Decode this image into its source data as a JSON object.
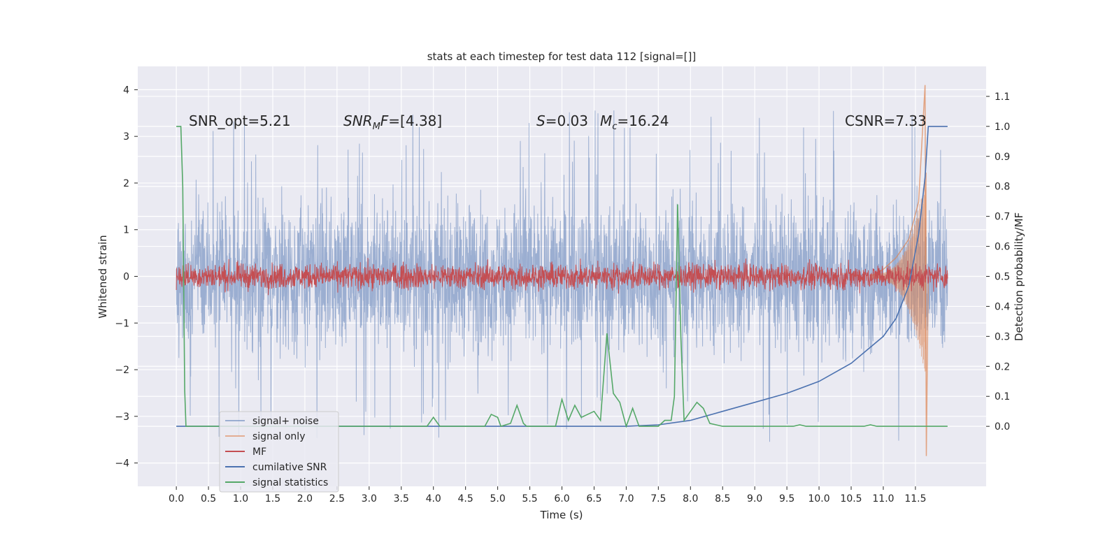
{
  "chart_data": {
    "type": "line",
    "title": "stats at each timestep for test data 112 [signal=[]]",
    "xlabel": "Time (s)",
    "ylabel": "Whitened strain",
    "ylabel_right": "Detection probability/MF",
    "xlim": [
      -0.6,
      12.6
    ],
    "ylim": [
      -4.5,
      4.5
    ],
    "ylim_right": [
      -0.2,
      1.2
    ],
    "x_ticks": [
      "0.0",
      "0.5",
      "1.0",
      "1.5",
      "2.0",
      "2.5",
      "3.0",
      "3.5",
      "4.0",
      "4.5",
      "5.0",
      "5.5",
      "6.0",
      "6.5",
      "7.0",
      "7.5",
      "8.0",
      "8.5",
      "9.0",
      "9.5",
      "10.0",
      "10.5",
      "11.0",
      "11.5"
    ],
    "y_ticks": [
      "4",
      "3",
      "2",
      "1",
      "0",
      "−1",
      "−2",
      "−3",
      "−4"
    ],
    "y_ticks_right": [
      "1.1",
      "1.0",
      "0.9",
      "0.8",
      "0.7",
      "0.6",
      "0.5",
      "0.4",
      "0.3",
      "0.2",
      "0.1",
      "0.0"
    ],
    "grid": true,
    "legend_placement": "lower-left",
    "legend": [
      "signal+ noise",
      "signal only",
      "MF",
      "cumilative SNR",
      "signal statistics"
    ],
    "annotations": {
      "snr_opt": "SNR_opt=5.21",
      "snr_mf_sym": "SNR",
      "snr_mf_sub": "M",
      "snr_mf_sym2": "F",
      "snr_mf_val": "=[4.38]",
      "s_sym": "S",
      "s_val": "=0.03",
      "mc_sym": "M",
      "mc_sub": "c",
      "mc_val": "=16.24",
      "csnr": "CSNR=7.33"
    },
    "series": [
      {
        "name": "signal+ noise",
        "color": "#4c72b0",
        "axis": "left",
        "description": "whitened noisy strain, roughly within ±2.5 with spikes to about ±3.7",
        "x_range": [
          0.0,
          12.0
        ],
        "typical_amplitude": 1.3,
        "peak_max": 3.8,
        "peak_min": -3.85
      },
      {
        "name": "signal only",
        "color": "#dd8452",
        "axis": "left",
        "description": "chirp signal growing near the end",
        "points": [
          [
            10.8,
            0.0
          ],
          [
            11.0,
            0.15
          ],
          [
            11.2,
            0.4
          ],
          [
            11.4,
            0.8
          ],
          [
            11.55,
            1.6
          ],
          [
            11.65,
            4.1
          ],
          [
            11.67,
            -3.85
          ],
          [
            11.7,
            0.0
          ]
        ]
      },
      {
        "name": "MF",
        "color": "#c44e52",
        "axis": "left",
        "description": "matched filter output, roughly within ±0.4",
        "x_range": [
          0.0,
          12.0
        ],
        "typical_amplitude": 0.3
      },
      {
        "name": "cumilative SNR",
        "color": "#4c72b0",
        "axis": "right",
        "points": [
          [
            0.0,
            0.0
          ],
          [
            7.0,
            0.0
          ],
          [
            7.5,
            0.005
          ],
          [
            8.0,
            0.02
          ],
          [
            8.5,
            0.05
          ],
          [
            9.0,
            0.08
          ],
          [
            9.5,
            0.11
          ],
          [
            10.0,
            0.15
          ],
          [
            10.5,
            0.21
          ],
          [
            11.0,
            0.3
          ],
          [
            11.2,
            0.36
          ],
          [
            11.4,
            0.47
          ],
          [
            11.55,
            0.64
          ],
          [
            11.65,
            0.83
          ],
          [
            11.7,
            1.0
          ],
          [
            12.0,
            1.0
          ]
        ]
      },
      {
        "name": "signal statistics",
        "color": "#55a868",
        "axis": "right",
        "points": [
          [
            0.0,
            1.0
          ],
          [
            0.07,
            1.0
          ],
          [
            0.1,
            0.8
          ],
          [
            0.13,
            0.12
          ],
          [
            0.15,
            0.0
          ],
          [
            3.9,
            0.0
          ],
          [
            4.0,
            0.03
          ],
          [
            4.1,
            0.0
          ],
          [
            4.8,
            0.0
          ],
          [
            4.9,
            0.04
          ],
          [
            5.0,
            0.03
          ],
          [
            5.05,
            0.0
          ],
          [
            5.2,
            0.01
          ],
          [
            5.3,
            0.07
          ],
          [
            5.4,
            0.01
          ],
          [
            5.45,
            0.0
          ],
          [
            5.9,
            0.0
          ],
          [
            6.0,
            0.09
          ],
          [
            6.1,
            0.02
          ],
          [
            6.2,
            0.07
          ],
          [
            6.3,
            0.03
          ],
          [
            6.5,
            0.05
          ],
          [
            6.6,
            0.02
          ],
          [
            6.7,
            0.31
          ],
          [
            6.8,
            0.11
          ],
          [
            6.9,
            0.08
          ],
          [
            7.0,
            0.0
          ],
          [
            7.1,
            0.06
          ],
          [
            7.2,
            0.0
          ],
          [
            7.5,
            0.0
          ],
          [
            7.6,
            0.02
          ],
          [
            7.7,
            0.02
          ],
          [
            7.75,
            0.1
          ],
          [
            7.8,
            0.74
          ],
          [
            7.85,
            0.3
          ],
          [
            7.9,
            0.02
          ],
          [
            8.0,
            0.05
          ],
          [
            8.1,
            0.08
          ],
          [
            8.2,
            0.06
          ],
          [
            8.3,
            0.01
          ],
          [
            8.5,
            0.0
          ],
          [
            9.6,
            0.0
          ],
          [
            9.7,
            0.005
          ],
          [
            9.8,
            0.0
          ],
          [
            10.7,
            0.0
          ],
          [
            10.8,
            0.005
          ],
          [
            10.9,
            0.0
          ],
          [
            12.0,
            0.0
          ]
        ]
      }
    ]
  }
}
